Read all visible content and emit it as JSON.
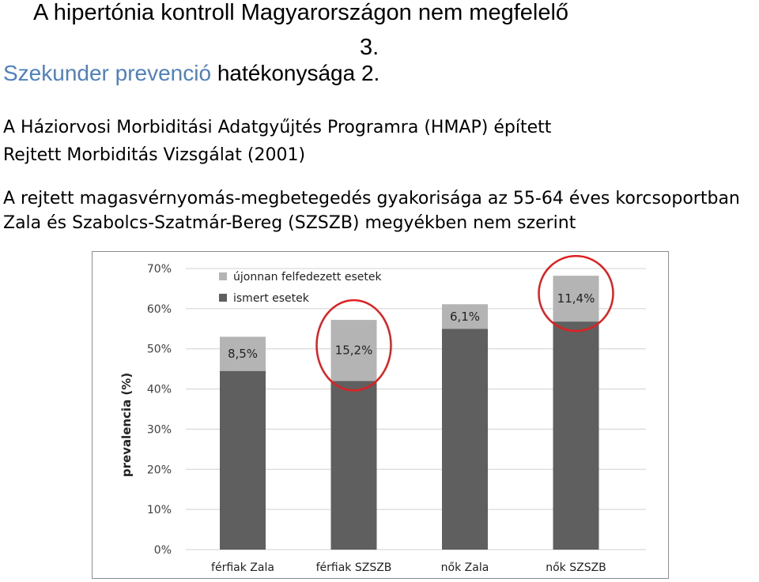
{
  "slide": {
    "title": "A hipertónia kontroll Magyarországon nem megfelelő",
    "title_number": "3.",
    "subtitle_accent": "Szekunder prevenció",
    "subtitle_rest": " hatékonysága 2.",
    "paragraph1_line1": "A Háziorvosi Morbiditási Adatgyűjtés Programra (HMAP) épített",
    "paragraph1_line2": "Rejtett Morbiditás Vizsgálat (2001)",
    "paragraph2_line1": "A rejtett magasvérnyomás-megbetegedés gyakorisága az 55-64 éves korcsoportban",
    "paragraph2_line2": "Zala és Szabolcs-Szatmár-Bereg (SZSZB) megyékben nem szerint"
  },
  "chart_data": {
    "type": "bar",
    "stacked": true,
    "categories": [
      "férfiak Zala",
      "férfiak SZSZB",
      "nők Zala",
      "nők SZSZB"
    ],
    "series": [
      {
        "name": "ismert esetek",
        "color": "#5f5f5f",
        "values": [
          44.5,
          42.0,
          55.0,
          56.8
        ]
      },
      {
        "name": "újonnan felfedezett esetek",
        "color": "#b4b4b4",
        "values": [
          8.5,
          15.2,
          6.1,
          11.4
        ]
      }
    ],
    "data_labels": [
      "8,5%",
      "15,2%",
      "6,1%",
      "11,4%"
    ],
    "ylabel": "prevalencia (%)",
    "ylim": [
      0,
      70
    ],
    "yticks": [
      "0%",
      "10%",
      "20%",
      "30%",
      "40%",
      "50%",
      "60%",
      "70%"
    ],
    "grid": true,
    "legend_position": "top-left",
    "highlighted_categories": [
      "férfiak SZSZB",
      "nők SZSZB"
    ],
    "highlight_color": "#e02020"
  }
}
